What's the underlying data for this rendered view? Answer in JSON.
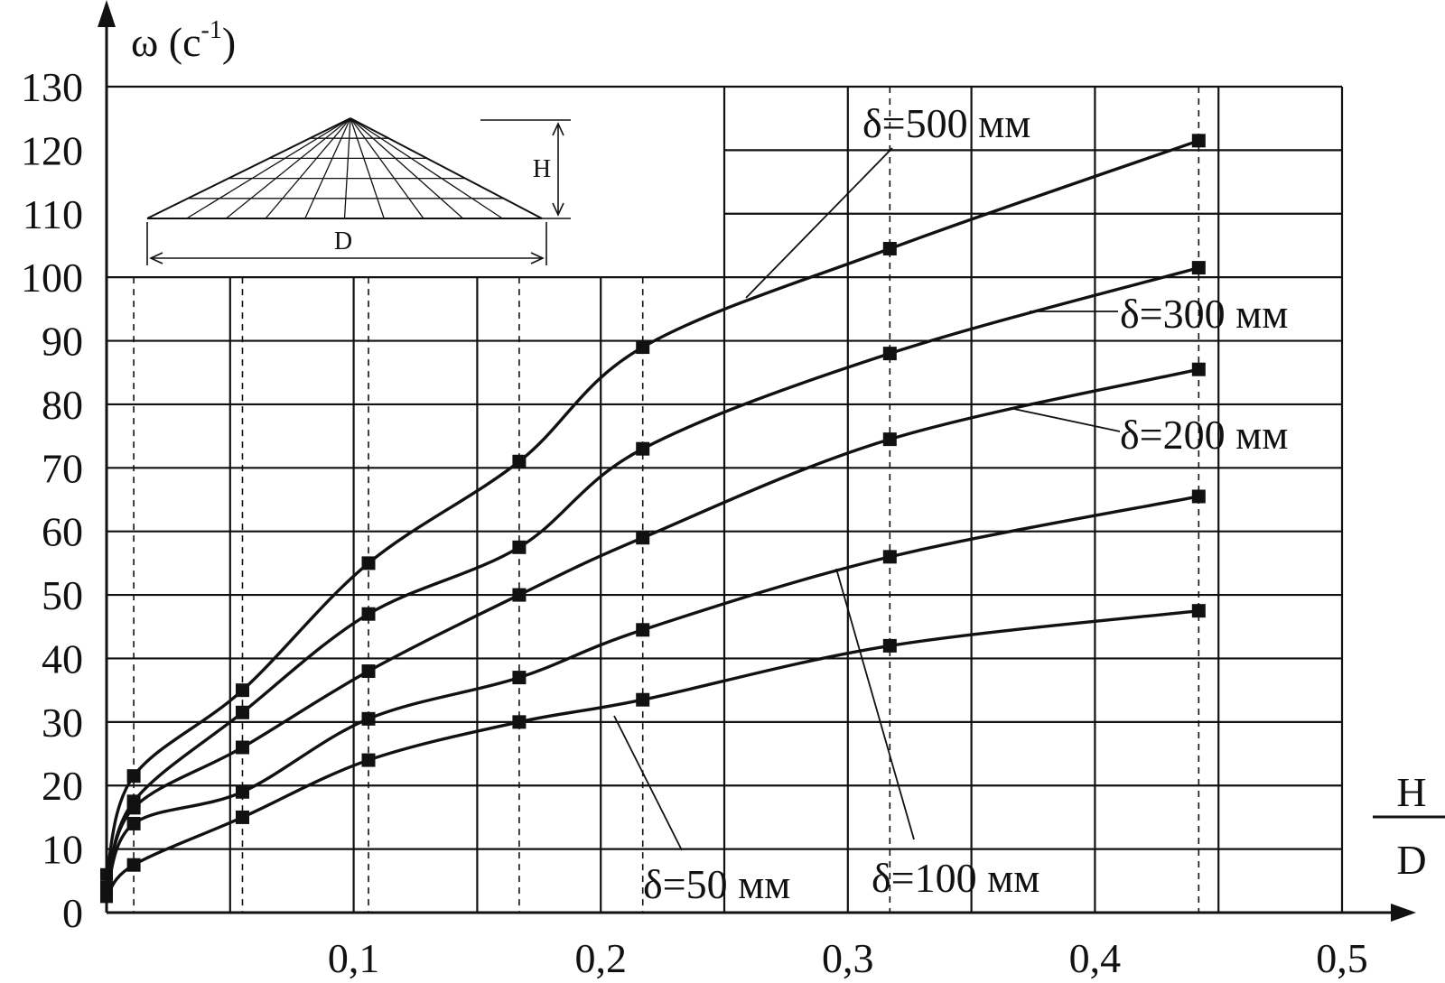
{
  "chart_data": {
    "type": "line",
    "title": "",
    "ylabel": "ω (c",
    "ylabel_exp": "-1",
    "ylabel_close": ")",
    "xlabel_num": "H",
    "xlabel_den": "D",
    "xlim": [
      0,
      0.5
    ],
    "ylim": [
      0,
      130
    ],
    "x_ticks": [
      {
        "value": 0.1,
        "label": "0,1"
      },
      {
        "value": 0.2,
        "label": "0,2"
      },
      {
        "value": 0.3,
        "label": "0,3"
      },
      {
        "value": 0.4,
        "label": "0,4"
      },
      {
        "value": 0.5,
        "label": "0,5"
      }
    ],
    "y_ticks": [
      {
        "value": 0,
        "label": "0"
      },
      {
        "value": 10,
        "label": "10"
      },
      {
        "value": 20,
        "label": "20"
      },
      {
        "value": 30,
        "label": "30"
      },
      {
        "value": 40,
        "label": "40"
      },
      {
        "value": 50,
        "label": "50"
      },
      {
        "value": 60,
        "label": "60"
      },
      {
        "value": 70,
        "label": "70"
      },
      {
        "value": 80,
        "label": "80"
      },
      {
        "value": 90,
        "label": "90"
      },
      {
        "value": 100,
        "label": "100"
      },
      {
        "value": 110,
        "label": "110"
      },
      {
        "value": 120,
        "label": "120"
      },
      {
        "value": 130,
        "label": "130"
      }
    ],
    "grid": true,
    "gridlines_x": [
      0.05,
      0.1,
      0.15,
      0.2,
      0.25,
      0.3,
      0.35,
      0.4,
      0.45,
      0.5
    ],
    "dashed_x": [
      0.011,
      0.055,
      0.106,
      0.167,
      0.217,
      0.317,
      0.442
    ],
    "series": [
      {
        "name": "δ=500 мм",
        "values": [
          [
            0,
            6
          ],
          [
            0.011,
            21.5
          ],
          [
            0.055,
            35
          ],
          [
            0.106,
            55
          ],
          [
            0.167,
            71
          ],
          [
            0.217,
            89
          ],
          [
            0.317,
            104.5
          ],
          [
            0.442,
            121.5
          ]
        ]
      },
      {
        "name": "δ=300 мм",
        "values": [
          [
            0,
            4
          ],
          [
            0.011,
            17.5
          ],
          [
            0.055,
            31.5
          ],
          [
            0.106,
            47
          ],
          [
            0.167,
            57.5
          ],
          [
            0.217,
            73
          ],
          [
            0.317,
            88
          ],
          [
            0.442,
            101.5
          ]
        ]
      },
      {
        "name": "δ=200 мм",
        "values": [
          [
            0,
            4
          ],
          [
            0.011,
            16.5
          ],
          [
            0.055,
            26
          ],
          [
            0.106,
            38
          ],
          [
            0.167,
            50
          ],
          [
            0.217,
            59
          ],
          [
            0.317,
            74.5
          ],
          [
            0.442,
            85.5
          ]
        ]
      },
      {
        "name": "δ=100 мм",
        "values": [
          [
            0,
            3
          ],
          [
            0.011,
            14
          ],
          [
            0.055,
            19
          ],
          [
            0.106,
            30.5
          ],
          [
            0.167,
            37
          ],
          [
            0.217,
            44.5
          ],
          [
            0.317,
            56
          ],
          [
            0.442,
            65.5
          ]
        ]
      },
      {
        "name": "δ=50 мм",
        "values": [
          [
            0,
            2.5
          ],
          [
            0.011,
            7.5
          ],
          [
            0.055,
            15
          ],
          [
            0.106,
            24
          ],
          [
            0.167,
            30
          ],
          [
            0.217,
            33.5
          ],
          [
            0.317,
            42
          ],
          [
            0.442,
            47.5
          ]
        ]
      }
    ],
    "inset": {
      "height_label": "H",
      "diameter_label": "D"
    }
  }
}
